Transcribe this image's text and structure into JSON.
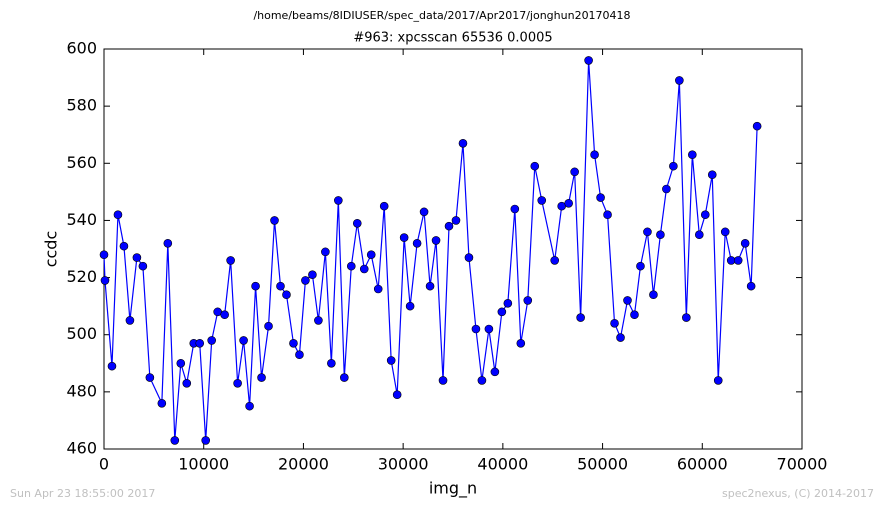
{
  "chart_data": {
    "type": "line",
    "suptitle": "/home/beams/8IDIUSER/spec_data/2017/Apr2017/jonghun20170418",
    "title": "#963: xpcsscan 65536 0.0005",
    "xlabel": "img_n",
    "ylabel": "ccdc",
    "timestamp": "Sun Apr 23 18:55:00 2017",
    "credit": "spec2nexus, (C) 2014-2017",
    "x": [
      0,
      100,
      800,
      1400,
      2000,
      2600,
      3300,
      3900,
      4600,
      5800,
      6400,
      7100,
      7700,
      8300,
      9000,
      9600,
      10200,
      10800,
      11400,
      12100,
      12700,
      13400,
      14000,
      14600,
      15200,
      15800,
      16500,
      17100,
      17700,
      18300,
      19000,
      19600,
      20200,
      20900,
      21500,
      22200,
      22800,
      23500,
      24100,
      24800,
      25400,
      26100,
      26800,
      27500,
      28100,
      28800,
      29400,
      30100,
      30700,
      31400,
      32100,
      32700,
      33300,
      34000,
      34600,
      35300,
      36000,
      36600,
      37300,
      37900,
      38600,
      39200,
      39900,
      40500,
      41200,
      41800,
      42500,
      43200,
      43900,
      45200,
      45900,
      46600,
      47200,
      47800,
      48600,
      49200,
      49800,
      50500,
      51200,
      51800,
      52500,
      53200,
      53800,
      54500,
      55100,
      55800,
      56400,
      57100,
      57700,
      58400,
      59000,
      59700,
      60300,
      61000,
      61600,
      62300,
      62900,
      63600,
      64300,
      64900,
      65500
    ],
    "series": [
      {
        "color": "#0000ff",
        "values": [
          528,
          519,
          489,
          542,
          531,
          505,
          527,
          524,
          485,
          476,
          532,
          463,
          490,
          483,
          497,
          497,
          463,
          498,
          508,
          507,
          526,
          483,
          498,
          475,
          517,
          485,
          503,
          540,
          517,
          514,
          497,
          493,
          519,
          521,
          505,
          529,
          490,
          547,
          485,
          524,
          539,
          523,
          528,
          516,
          545,
          491,
          479,
          534,
          510,
          532,
          543,
          517,
          533,
          484,
          538,
          540,
          567,
          527,
          502,
          484,
          502,
          487,
          508,
          511,
          544,
          497,
          512,
          559,
          547,
          526,
          545,
          546,
          557,
          506,
          596,
          563,
          548,
          542,
          504,
          499,
          512,
          507,
          524,
          536,
          514,
          535,
          551,
          559,
          589,
          506,
          563,
          535,
          542,
          556,
          484,
          536,
          526,
          526,
          532,
          517,
          573
        ]
      }
    ],
    "xlim": [
      0,
      70000
    ],
    "xticks": [
      0,
      10000,
      20000,
      30000,
      40000,
      50000,
      60000,
      70000
    ],
    "ylim": [
      460,
      600
    ],
    "yticks": [
      460,
      480,
      500,
      520,
      540,
      560,
      580,
      600
    ]
  }
}
